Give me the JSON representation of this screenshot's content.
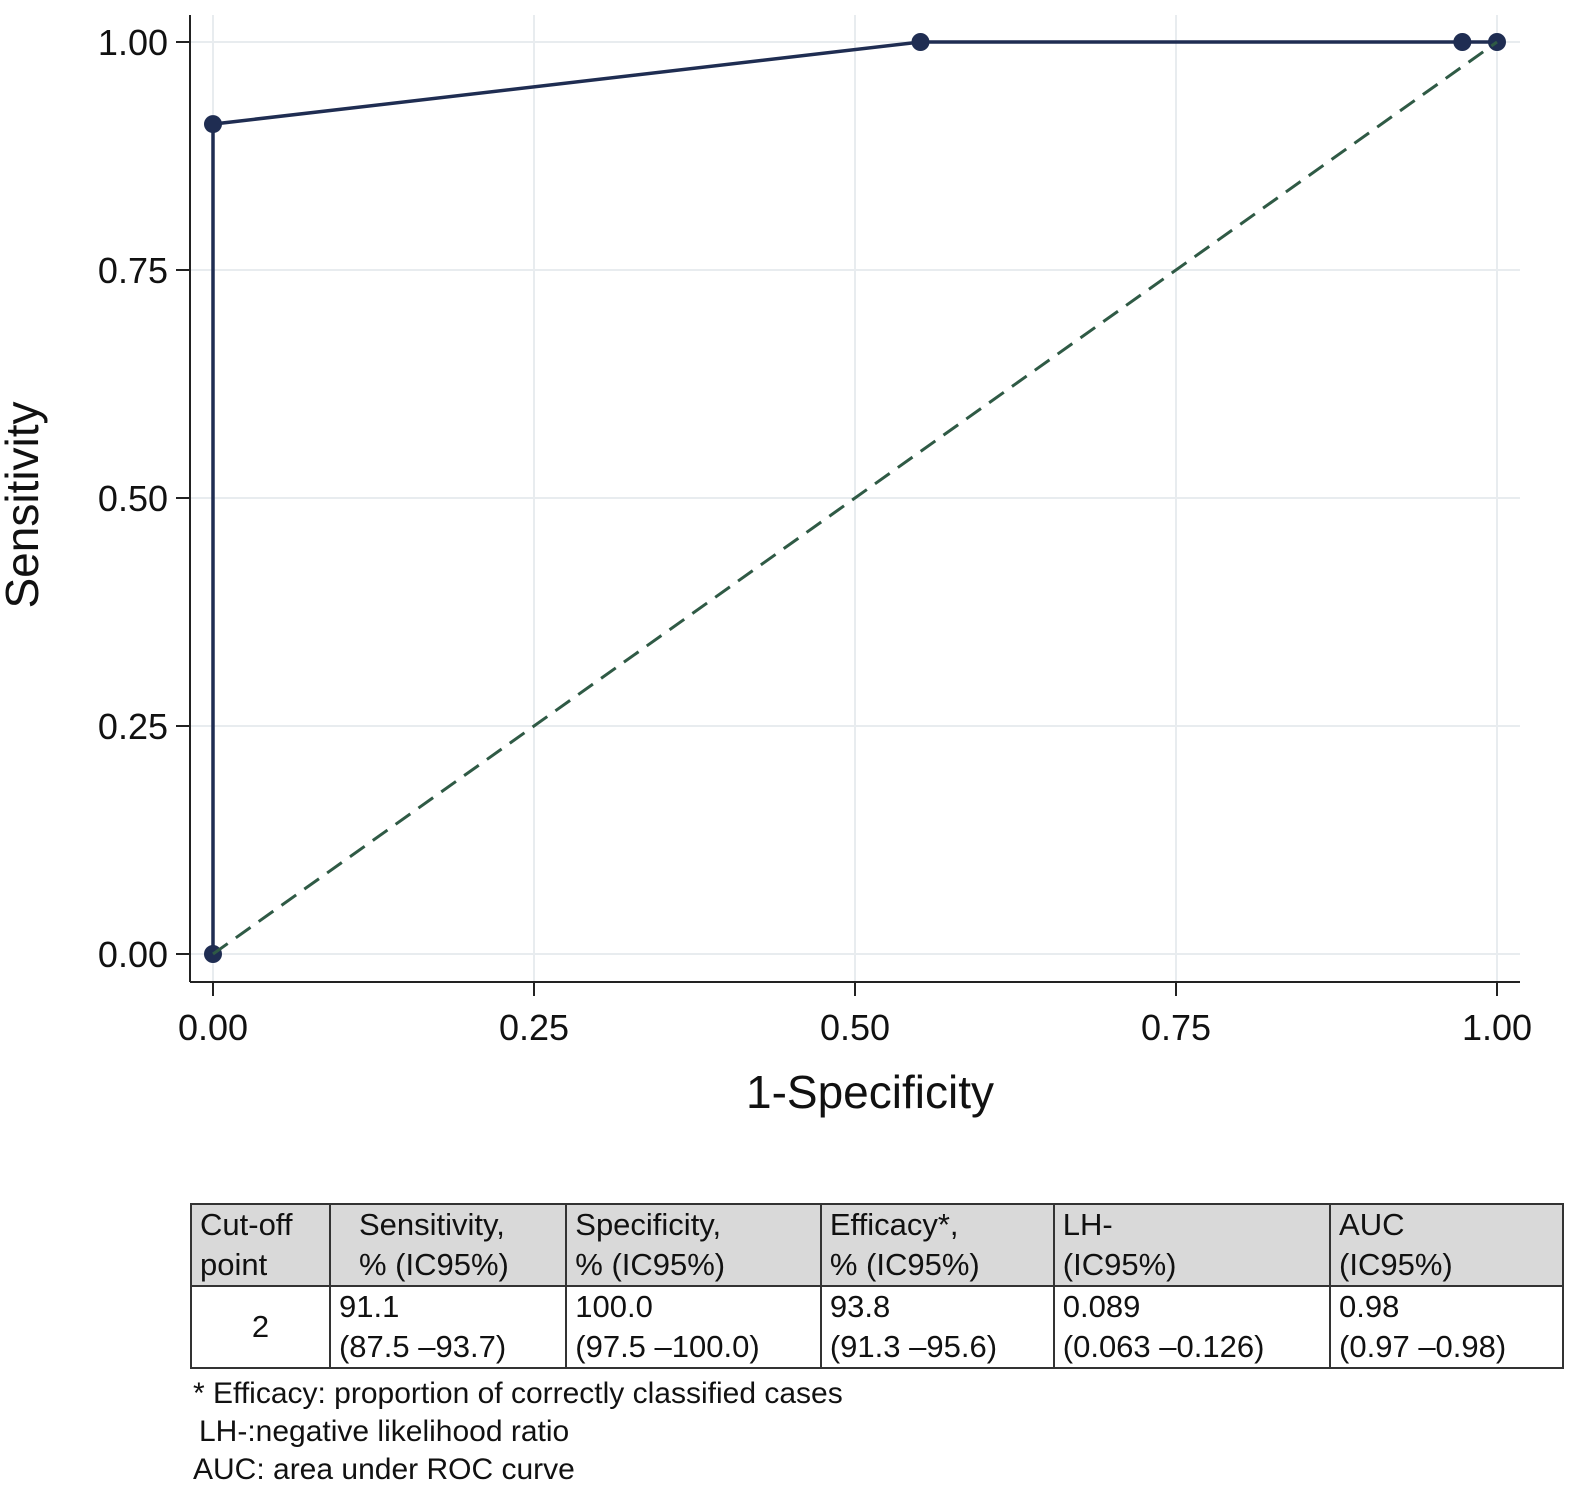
{
  "chart_data": {
    "type": "line",
    "xlabel": "1-Specificity",
    "ylabel": "Sensitivity",
    "xlim": [
      0,
      1
    ],
    "ylim": [
      0,
      1
    ],
    "xticks": [
      "0.00",
      "0.25",
      "0.50",
      "0.75",
      "1.00"
    ],
    "yticks": [
      "0.00",
      "0.25",
      "0.50",
      "0.75",
      "1.00"
    ],
    "grid": true,
    "series": [
      {
        "x": [
          0,
          0,
          0.551,
          0.973,
          1
        ],
        "y": [
          0,
          0.91,
          1,
          1,
          1
        ],
        "color": "#1f2d52",
        "markers": true
      },
      {
        "x": [
          0,
          1
        ],
        "y": [
          0,
          1
        ],
        "color": "#2f5a45",
        "style": "dashed"
      }
    ]
  },
  "table": {
    "headers": [
      [
        "Cut-off",
        "point"
      ],
      [
        "Sensitivity,",
        "% (IC95%)"
      ],
      [
        "Specificity,",
        "% (IC95%)"
      ],
      [
        "Efficacy*,",
        "% (IC95%)"
      ],
      [
        "LH-",
        "(IC95%)"
      ],
      [
        "AUC",
        "(IC95%)"
      ]
    ],
    "row": [
      [
        "2"
      ],
      [
        "91.1",
        "(87.5 –93.7)"
      ],
      [
        "100.0",
        "(97.5 –100.0)"
      ],
      [
        "93.8",
        "(91.3 –95.6)"
      ],
      [
        "0.089",
        "(0.063 –0.126)"
      ],
      [
        "0.98",
        "(0.97 –0.98)"
      ]
    ]
  },
  "notes": [
    "* Efficacy: proportion of correctly classified cases",
    "LH-:negative likelihood ratio",
    "AUC: area under ROC curve"
  ]
}
